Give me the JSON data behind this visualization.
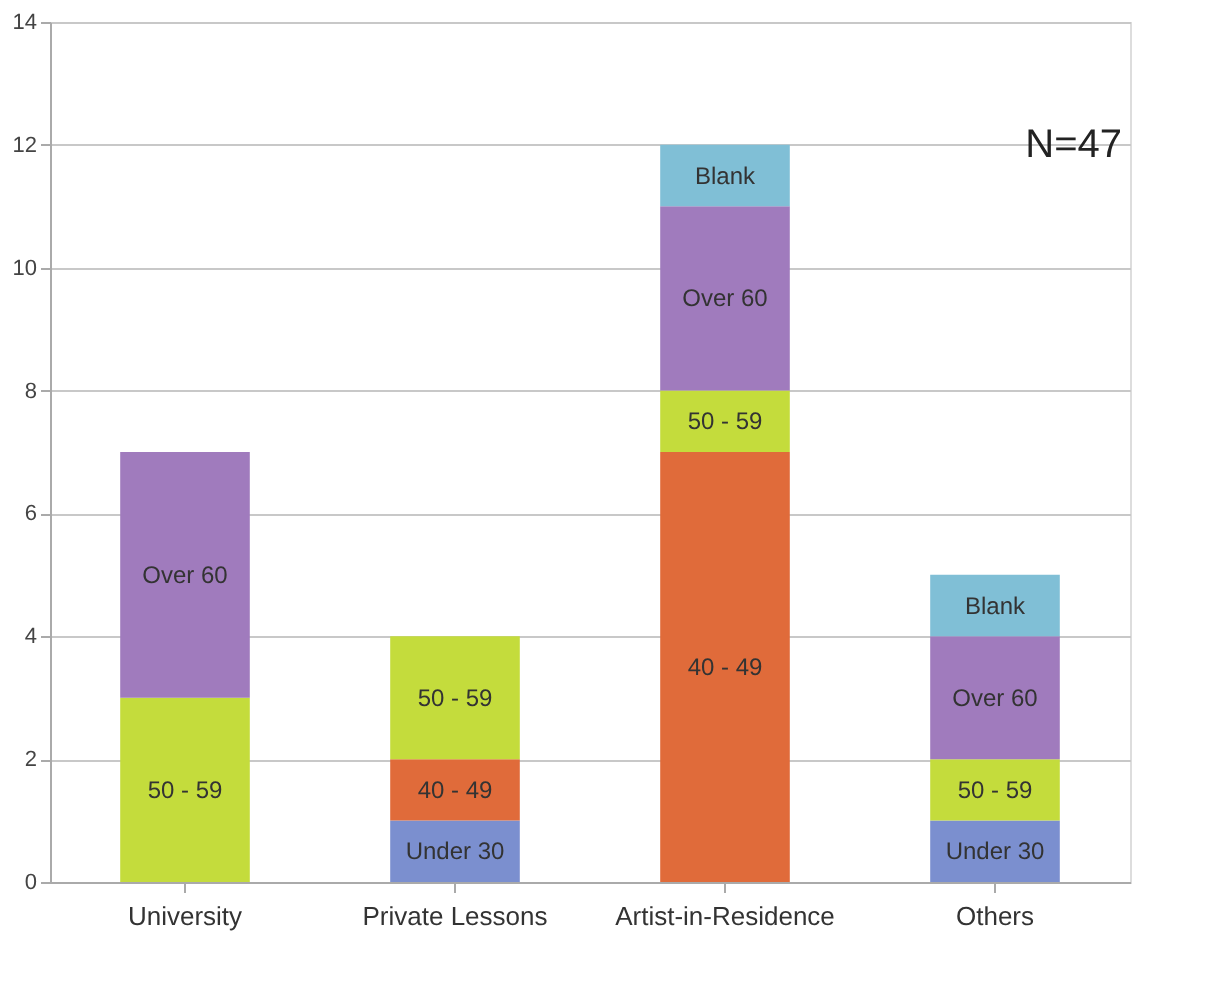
{
  "chart_data": {
    "type": "bar",
    "stacked": true,
    "categories": [
      "University",
      "Private Lessons",
      "Artist-in-Residence",
      "Others"
    ],
    "series": [
      {
        "name": "Under 30",
        "color": "#7b8fcf",
        "values": [
          null,
          1,
          null,
          1
        ]
      },
      {
        "name": "40 - 49",
        "color": "#e06b3a",
        "values": [
          null,
          1,
          7,
          null
        ]
      },
      {
        "name": "50 - 59",
        "color": "#c4dc3c",
        "values": [
          3,
          2,
          1,
          1
        ]
      },
      {
        "name": "Over 60",
        "color": "#a07bbd",
        "values": [
          4,
          null,
          3,
          2
        ]
      },
      {
        "name": "Blank",
        "color": "#80bfd6",
        "values": [
          null,
          null,
          1,
          1
        ]
      }
    ],
    "ylim": [
      0,
      14
    ],
    "yticks": [
      0,
      2,
      4,
      6,
      8,
      10,
      12,
      14
    ],
    "grid": "y",
    "annotations": [
      "N=47"
    ]
  }
}
